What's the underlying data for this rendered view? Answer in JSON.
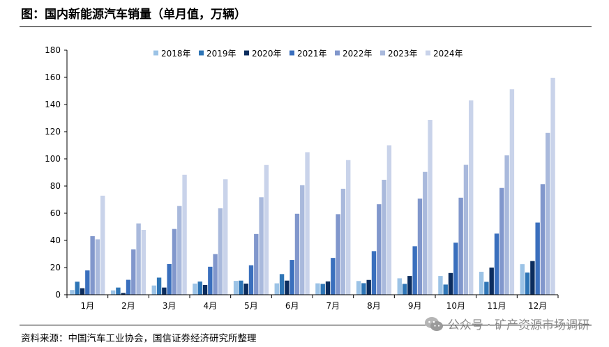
{
  "header": {
    "title": "图：国内新能源汽车销量（单月值，万辆）"
  },
  "footer": {
    "source": "资料来源：中国汽车工业协会，国信证券经济研究所整理",
    "watermark": "公众号 · 矿产资源市场调研"
  },
  "chart_data": {
    "type": "bar",
    "categories": [
      "1月",
      "2月",
      "3月",
      "4月",
      "5月",
      "6月",
      "7月",
      "8月",
      "9月",
      "10月",
      "11月",
      "12月"
    ],
    "ylim": [
      0,
      180
    ],
    "yticks": [
      0,
      20,
      40,
      60,
      80,
      100,
      120,
      140,
      160,
      180
    ],
    "grid": false,
    "legend_position": "top-center",
    "series": [
      {
        "name": "2018年",
        "color": "#9cc3e6",
        "values": [
          3.5,
          3.2,
          6.8,
          8.2,
          10.2,
          8.4,
          8.4,
          10.1,
          12.1,
          13.8,
          16.9,
          22.5
        ]
      },
      {
        "name": "2019年",
        "color": "#2e75b6",
        "values": [
          9.6,
          5.3,
          12.6,
          9.7,
          10.4,
          15.2,
          8.0,
          8.5,
          8.0,
          7.5,
          9.5,
          16.3
        ]
      },
      {
        "name": "2020年",
        "color": "#0c2d5e",
        "values": [
          4.8,
          1.3,
          5.3,
          7.2,
          8.2,
          10.4,
          9.8,
          10.9,
          13.8,
          16.0,
          20.0,
          24.8
        ]
      },
      {
        "name": "2021年",
        "color": "#3a6fbd",
        "values": [
          17.9,
          11.0,
          22.6,
          20.6,
          21.7,
          25.6,
          27.1,
          32.1,
          35.7,
          38.3,
          45.0,
          53.1
        ]
      },
      {
        "name": "2022年",
        "color": "#8197cc",
        "values": [
          43.1,
          33.4,
          48.4,
          29.9,
          44.7,
          59.6,
          59.3,
          66.6,
          70.8,
          71.4,
          78.6,
          81.4
        ]
      },
      {
        "name": "2023年",
        "color": "#a9b9dc",
        "values": [
          40.8,
          52.5,
          65.3,
          63.6,
          71.7,
          80.6,
          78.0,
          84.6,
          90.4,
          95.6,
          102.6,
          119.1
        ]
      },
      {
        "name": "2024年",
        "color": "#c9d3ea",
        "values": [
          72.9,
          47.7,
          88.3,
          85.0,
          95.5,
          104.9,
          99.1,
          110.0,
          128.7,
          143.0,
          151.2,
          159.6
        ]
      }
    ]
  }
}
